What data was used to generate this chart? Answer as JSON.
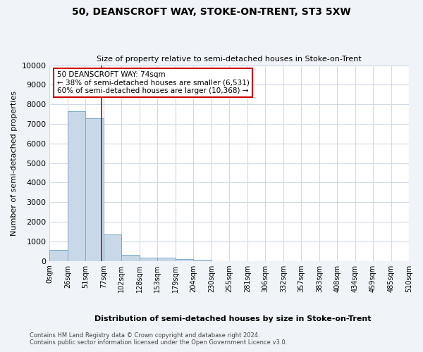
{
  "title": "50, DEANSCROFT WAY, STOKE-ON-TRENT, ST3 5XW",
  "subtitle": "Size of property relative to semi-detached houses in Stoke-on-Trent",
  "xlabel": "Distribution of semi-detached houses by size in Stoke-on-Trent",
  "ylabel": "Number of semi-detached properties",
  "bar_values": [
    550,
    7650,
    7300,
    1370,
    320,
    175,
    150,
    100,
    60,
    0,
    0,
    0,
    0,
    0,
    0,
    0,
    0,
    0,
    0,
    0
  ],
  "bin_edges": [
    0,
    26,
    51,
    77,
    102,
    128,
    153,
    179,
    204,
    230,
    255,
    281,
    306,
    332,
    357,
    383,
    408,
    434,
    459,
    485,
    510
  ],
  "tick_labels": [
    "0sqm",
    "26sqm",
    "51sqm",
    "77sqm",
    "102sqm",
    "128sqm",
    "153sqm",
    "179sqm",
    "204sqm",
    "230sqm",
    "255sqm",
    "281sqm",
    "306sqm",
    "332sqm",
    "357sqm",
    "383sqm",
    "408sqm",
    "434sqm",
    "459sqm",
    "485sqm",
    "510sqm"
  ],
  "property_line_x": 74,
  "bar_color": "#c8d8e8",
  "bar_edge_color": "#7aaacb",
  "line_color": "#cc0000",
  "annotation_line1": "50 DEANSCROFT WAY: 74sqm",
  "annotation_line2": "← 38% of semi-detached houses are smaller (6,531)",
  "annotation_line3": "60% of semi-detached houses are larger (10,368) →",
  "annotation_box_facecolor": "#ffffff",
  "annotation_box_edgecolor": "#cc0000",
  "ylim": [
    0,
    10000
  ],
  "yticks": [
    0,
    1000,
    2000,
    3000,
    4000,
    5000,
    6000,
    7000,
    8000,
    9000,
    10000
  ],
  "footer_line1": "Contains HM Land Registry data © Crown copyright and database right 2024.",
  "footer_line2": "Contains public sector information licensed under the Open Government Licence v3.0.",
  "fig_facecolor": "#f0f4f8",
  "plot_facecolor": "#ffffff",
  "grid_color": "#d0dae6",
  "title_fontsize": 10,
  "subtitle_fontsize": 8,
  "ylabel_fontsize": 8,
  "xlabel_fontsize": 8,
  "tick_fontsize": 7,
  "annotation_fontsize": 7.5,
  "footer_fontsize": 6
}
